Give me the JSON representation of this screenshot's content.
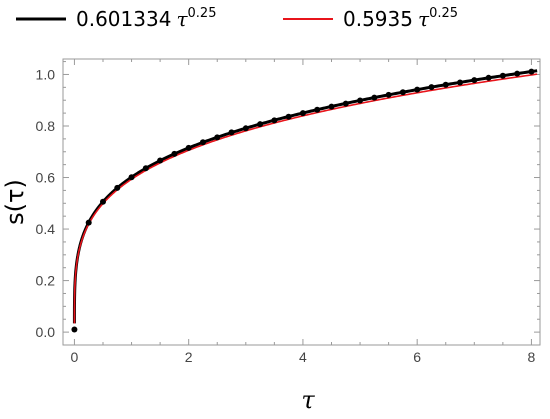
{
  "chart_data": {
    "type": "line",
    "title": "",
    "xlabel": "τ",
    "ylabel": "s(τ)",
    "xlim": [
      -0.2,
      8.15
    ],
    "ylim": [
      -0.05,
      1.06
    ],
    "xticks": [
      0,
      2,
      4,
      6,
      8
    ],
    "xtick_labels": [
      "0",
      "2",
      "4",
      "6",
      "8"
    ],
    "yticks": [
      0.0,
      0.2,
      0.4,
      0.6,
      0.8,
      1.0
    ],
    "ytick_labels": [
      "0.0",
      "0.2",
      "0.4",
      "0.6",
      "0.8",
      "1.0"
    ],
    "grid": false,
    "legend_position": "top",
    "legend": [
      {
        "coefficient": "0.601334",
        "variable": "τ",
        "exponent": "0.25",
        "color": "#000000"
      },
      {
        "coefficient": "0.5935",
        "variable": "τ",
        "exponent": "0.25",
        "color": "#e8141b"
      }
    ],
    "series": [
      {
        "color": "#000000",
        "function": {
          "coefficient": 0.601334,
          "exponent": 0.25
        },
        "x_range": [
          0.0,
          8.1
        ],
        "markers": true,
        "marker_x": [
          0.0,
          0.25,
          0.5,
          0.75,
          1.0,
          1.25,
          1.5,
          1.75,
          2.0,
          2.25,
          2.5,
          2.75,
          3.0,
          3.25,
          3.5,
          3.75,
          4.0,
          4.25,
          4.5,
          4.75,
          5.0,
          5.25,
          5.5,
          5.75,
          6.0,
          6.25,
          6.5,
          6.75,
          7.0,
          7.25,
          7.5,
          7.75,
          8.0
        ],
        "marker_y": [
          0.01,
          0.425,
          0.506,
          0.56,
          0.601,
          0.636,
          0.666,
          0.692,
          0.715,
          0.737,
          0.756,
          0.775,
          0.791,
          0.807,
          0.822,
          0.836,
          0.85,
          0.863,
          0.875,
          0.887,
          0.899,
          0.91,
          0.921,
          0.931,
          0.941,
          0.951,
          0.96,
          0.969,
          0.978,
          0.987,
          0.995,
          1.003,
          1.011
        ]
      },
      {
        "color": "#e8141b",
        "function": {
          "coefficient": 0.5935,
          "exponent": 0.25
        },
        "x_range": [
          0.0,
          8.1
        ],
        "markers": false
      }
    ]
  }
}
